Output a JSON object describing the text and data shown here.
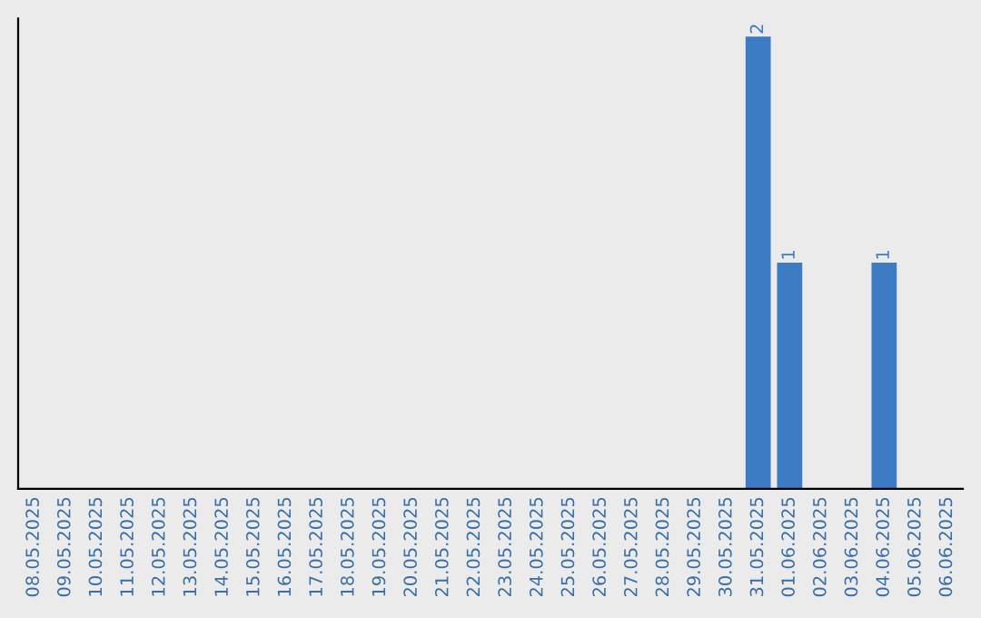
{
  "chart_data": {
    "type": "bar",
    "categories": [
      "08.05.2025",
      "09.05.2025",
      "10.05.2025",
      "11.05.2025",
      "12.05.2025",
      "13.05.2025",
      "14.05.2025",
      "15.05.2025",
      "16.05.2025",
      "17.05.2025",
      "18.05.2025",
      "19.05.2025",
      "20.05.2025",
      "21.05.2025",
      "22.05.2025",
      "23.05.2025",
      "24.05.2025",
      "25.05.2025",
      "26.05.2025",
      "27.05.2025",
      "28.05.2025",
      "29.05.2025",
      "30.05.2025",
      "31.05.2025",
      "01.06.2025",
      "02.06.2025",
      "03.06.2025",
      "04.06.2025",
      "05.06.2025",
      "06.06.2025"
    ],
    "values": [
      null,
      null,
      null,
      null,
      null,
      null,
      null,
      null,
      null,
      null,
      null,
      null,
      null,
      null,
      null,
      null,
      null,
      null,
      null,
      null,
      null,
      null,
      null,
      2,
      1,
      null,
      null,
      1,
      null,
      null
    ],
    "data_labels": true,
    "color": "#3d7cc4",
    "ylim": [
      0,
      2.08
    ],
    "tick_labels": "x",
    "grid": false,
    "legend": false
  }
}
